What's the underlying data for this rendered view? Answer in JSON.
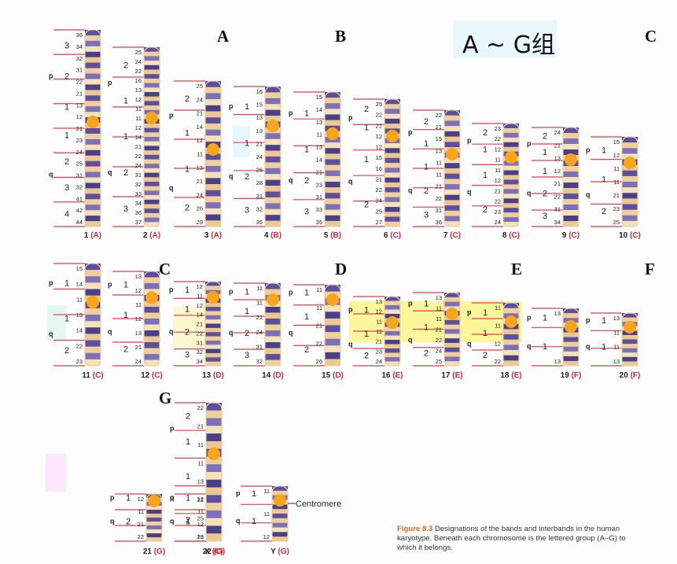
{
  "title": "A ~ G组",
  "group_labels": [
    {
      "id": "A",
      "text": "A"
    },
    {
      "id": "B",
      "text": "B"
    },
    {
      "id": "C1",
      "text": "C"
    },
    {
      "id": "C2",
      "text": "C"
    },
    {
      "id": "D",
      "text": "D"
    },
    {
      "id": "E",
      "text": "E"
    },
    {
      "id": "F",
      "text": "F"
    },
    {
      "id": "G",
      "text": "G"
    }
  ],
  "centromere_label": "Centromere",
  "caption": {
    "figure": "Figure 8.3",
    "text": "Designations of the bands and interbands in the human karyotype. Beneath each chromosome is the lettered group (A–G) to which it belongs."
  },
  "chromosomes": [
    {
      "name": "1",
      "group": "A",
      "p_regions": [
        "3",
        "2",
        "1"
      ],
      "q_regions": [
        "1",
        "2",
        "3",
        "4"
      ],
      "bands": [
        "36",
        "34",
        "32",
        "31",
        "22",
        "21",
        "13",
        "12",
        "21",
        "23",
        "24",
        "25",
        "31",
        "32",
        "41",
        "42",
        "44"
      ]
    },
    {
      "name": "2",
      "group": "A",
      "p_regions": [
        "2",
        "1"
      ],
      "q_regions": [
        "1",
        "2",
        "3"
      ],
      "bands": [
        "25",
        "24",
        "22",
        "16",
        "13",
        "12",
        "11",
        "11",
        "12",
        "14",
        "21",
        "22",
        "24",
        "31",
        "32",
        "33",
        "34",
        "36",
        "37"
      ]
    },
    {
      "name": "3",
      "group": "A",
      "p_regions": [
        "2",
        "1"
      ],
      "q_regions": [
        "1",
        "2"
      ],
      "bands": [
        "25",
        "24",
        "21",
        "14",
        "12",
        "11",
        "13",
        "21",
        "24",
        "26",
        "29"
      ]
    },
    {
      "name": "4",
      "group": "B",
      "p_regions": [
        "1"
      ],
      "q_regions": [
        "1",
        "2",
        "3"
      ],
      "bands": [
        "16",
        "15",
        "13",
        "13",
        "21",
        "24",
        "26",
        "28",
        "31",
        "32",
        "35"
      ]
    },
    {
      "name": "5",
      "group": "B",
      "p_regions": [
        "1"
      ],
      "q_regions": [
        "1",
        "2",
        "3"
      ],
      "bands": [
        "15",
        "14",
        "13",
        "11",
        "13",
        "14",
        "21",
        "23",
        "31",
        "33",
        "35"
      ]
    },
    {
      "name": "6",
      "group": "C",
      "p_regions": [
        "2",
        "1"
      ],
      "q_regions": [
        "1",
        "2"
      ],
      "bands": [
        "25",
        "22",
        "21",
        "12",
        "12",
        "15",
        "16",
        "21",
        "22",
        "24",
        "25",
        "27"
      ]
    },
    {
      "name": "7",
      "group": "C",
      "p_regions": [
        "2",
        "1"
      ],
      "q_regions": [
        "1",
        "2",
        "3"
      ],
      "bands": [
        "22",
        "21",
        "15",
        "13",
        "11",
        "11",
        "21",
        "22",
        "31",
        "36"
      ]
    },
    {
      "name": "8",
      "group": "C",
      "p_regions": [
        "2",
        "1"
      ],
      "q_regions": [
        "1",
        "2"
      ],
      "bands": [
        "23",
        "22",
        "12",
        "11",
        "11",
        "12",
        "21",
        "22",
        "23",
        "24"
      ]
    },
    {
      "name": "9",
      "group": "C",
      "p_regions": [
        "2",
        "1"
      ],
      "q_regions": [
        "1",
        "2",
        "3"
      ],
      "bands": [
        "24",
        "21",
        "13",
        "12",
        "21",
        "22",
        "31",
        "34"
      ]
    },
    {
      "name": "10",
      "group": "C",
      "p_regions": [
        "1"
      ],
      "q_regions": [
        "1",
        "2"
      ],
      "bands": [
        "15",
        "12",
        "11",
        "11",
        "21",
        "23",
        "25"
      ]
    },
    {
      "name": "11",
      "group": "C",
      "p_regions": [
        "1"
      ],
      "q_regions": [
        "1",
        "2"
      ],
      "bands": [
        "15",
        "14",
        "11",
        "13",
        "14",
        "22",
        "23"
      ]
    },
    {
      "name": "12",
      "group": "C",
      "p_regions": [
        "1"
      ],
      "q_regions": [
        "1",
        "2"
      ],
      "bands": [
        "13",
        "12",
        "11",
        "12",
        "13",
        "21",
        "24"
      ]
    },
    {
      "name": "13",
      "group": "D",
      "p_regions": [
        "1"
      ],
      "q_regions": [
        "1",
        "2",
        "3"
      ],
      "bands": [
        "12",
        "11",
        "12",
        "14",
        "21",
        "22",
        "31",
        "32",
        "34"
      ]
    },
    {
      "name": "14",
      "group": "D",
      "p_regions": [
        "1"
      ],
      "q_regions": [
        "1",
        "2",
        "3"
      ],
      "bands": [
        "11",
        "11",
        "21",
        "24",
        "31",
        "32"
      ]
    },
    {
      "name": "15",
      "group": "D",
      "p_regions": [
        "1"
      ],
      "q_regions": [
        "1",
        "2"
      ],
      "bands": [
        "11",
        "11",
        "21",
        "22",
        "26"
      ]
    },
    {
      "name": "16",
      "group": "E",
      "p_regions": [
        "1"
      ],
      "q_regions": [
        "1",
        "2"
      ],
      "bands": [
        "13",
        "12",
        "11",
        "11",
        "21",
        "23",
        "24"
      ]
    },
    {
      "name": "17",
      "group": "E",
      "p_regions": [
        "1"
      ],
      "q_regions": [
        "1",
        "2"
      ],
      "bands": [
        "13",
        "11",
        "11",
        "21",
        "22",
        "24",
        "25"
      ]
    },
    {
      "name": "18",
      "group": "E",
      "p_regions": [
        "1"
      ],
      "q_regions": [
        "1",
        "2"
      ],
      "bands": [
        "11",
        "11",
        "12",
        "22"
      ]
    },
    {
      "name": "19",
      "group": "F",
      "p_regions": [
        "1"
      ],
      "q_regions": [
        "1"
      ],
      "bands": [
        "13",
        "13"
      ]
    },
    {
      "name": "20",
      "group": "F",
      "p_regions": [
        "1"
      ],
      "q_regions": [
        "1"
      ],
      "bands": [
        "13",
        "11",
        "11",
        "13"
      ]
    },
    {
      "name": "21",
      "group": "G",
      "p_regions": [
        "1"
      ],
      "q_regions": [
        "2"
      ],
      "bands": [
        "12",
        "11",
        "21",
        "22"
      ]
    },
    {
      "name": "22",
      "group": "G",
      "p_regions": [
        "1"
      ],
      "q_regions": [
        "1"
      ],
      "bands": [
        "12",
        "11",
        "12",
        "13"
      ]
    },
    {
      "name": "X",
      "group": "C",
      "p_regions": [
        "2",
        "1"
      ],
      "q_regions": [
        "1",
        "2"
      ],
      "bands": [
        "22",
        "21",
        "11",
        "11",
        "13",
        "21",
        "25",
        "28"
      ]
    },
    {
      "name": "Y",
      "group": "G",
      "p_regions": [
        "1"
      ],
      "q_regions": [
        "1"
      ],
      "bands": [
        "11",
        "11",
        "12"
      ]
    }
  ]
}
